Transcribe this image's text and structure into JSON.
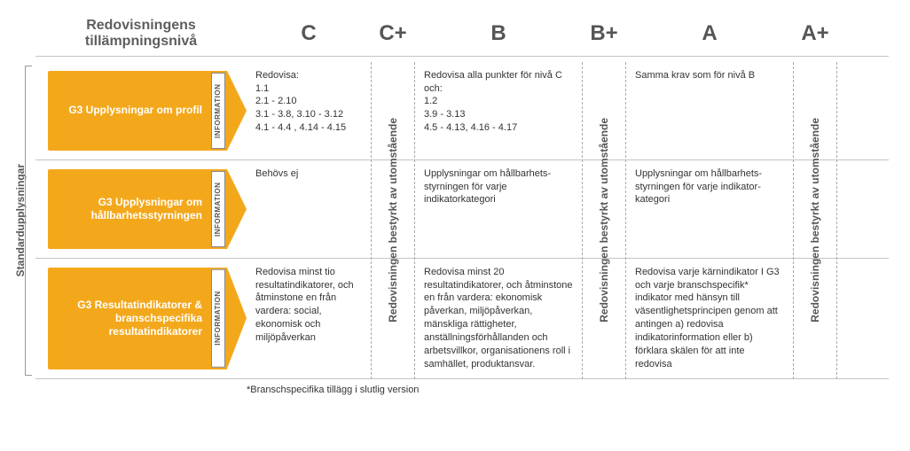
{
  "colors": {
    "arrow_fill": "#f3a81c",
    "arrow_text": "#ffffff",
    "header_text": "#5e5e5e",
    "border": "#c5c5c5",
    "dash": "#aaaaaa",
    "body_text": "#333333",
    "info_bg": "#ffffff",
    "info_text": "#555555"
  },
  "header": {
    "title_line1": "Redovisningens",
    "title_line2": "tillämpningsnivå",
    "col_c": "C",
    "col_c_plus": "C+",
    "col_b": "B",
    "col_b_plus": "B+",
    "col_a": "A",
    "col_a_plus": "A+"
  },
  "side_label": "Standardupplysningar",
  "info_strip": "INFORMATION",
  "plus_label": "Redovisningen bestyrkt av utomstående",
  "rows": [
    {
      "label": "G3 Upplysningar om profil",
      "c": "Redovisa:\n1.1\n2.1 -  2.10\n3.1 - 3.8, 3.10 - 3.12\n4.1 - 4.4 , 4.14 - 4.15",
      "b": "Redovisa alla punkter för nivå C och:\n1.2\n3.9 - 3.13\n4.5 - 4.13, 4.16 - 4.17",
      "a": "Samma krav som för nivå B"
    },
    {
      "label": "G3 Upplysningar om hållbarhets­styrningen",
      "c": "Behövs ej",
      "b": "Upplysningar om hållbarhets­styrningen för varje indikatorkategori",
      "a": "Upplysningar om hållbarhets­styrningen för varje indikator­kategori"
    },
    {
      "label": "G3 Resultatindikatorer & branschspecifika resultatindikatorer",
      "c": "Redovisa minst tio resultatindikatorer, och åtminstone en från vardera: social, ekonomisk och miljöpåverkan",
      "b": "Redovisa minst 20 resultatindikatorer, och åtminstone en från vardera: ekonomisk påverkan, miljöpåverkan, mänskliga rättigheter, anställningsför­hållanden och arbetsvillkor, organisa­tionens roll i samhället, produktansvar.",
      "a": "Redovisa varje kärnindikator I G3 och varje branschspecifik* indikator med hänsyn till väsentlighetsprincipen genom att antingen a) redovisa indikatorinformation eller b) förklara skälen för att inte redovisa"
    }
  ],
  "footnote": "*Branschspecifika tillägg i slutlig version"
}
